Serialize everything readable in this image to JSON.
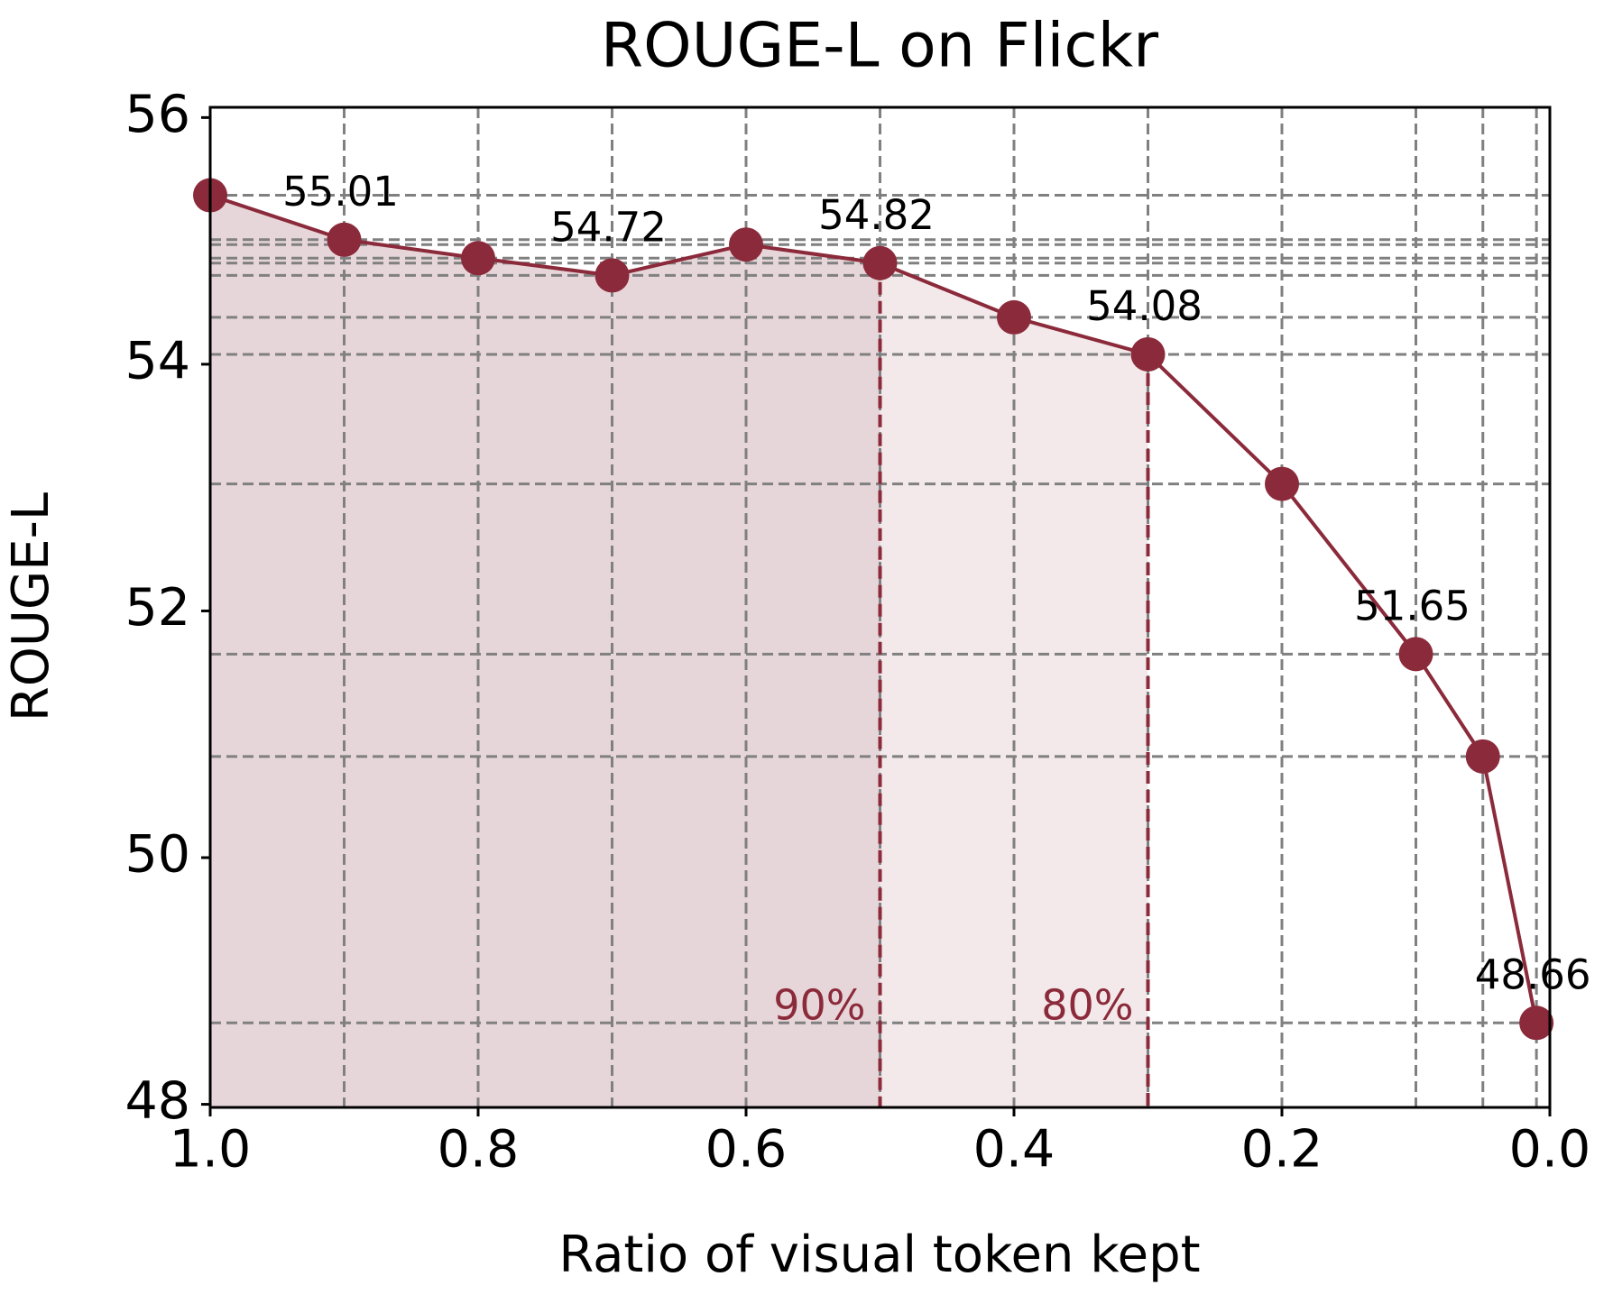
{
  "chart_data": {
    "type": "line",
    "title": "ROUGE-L on Flickr",
    "x_label": "Ratio of visual token kept",
    "y_label": "ROUGE-L",
    "x": [
      1.0,
      0.9,
      0.8,
      0.7,
      0.6,
      0.5,
      0.4,
      0.3,
      0.2,
      0.1,
      0.05,
      0.01
    ],
    "series": [
      {
        "color": "#8b2a3a",
        "values": [
          55.37,
          55.01,
          54.86,
          54.72,
          54.97,
          54.82,
          54.38,
          54.08,
          53.03,
          51.65,
          50.82,
          48.66
        ],
        "value_labels": [
          null,
          "55.01",
          null,
          "54.72",
          null,
          "54.82",
          null,
          "54.08",
          null,
          "51.65",
          null,
          "48.66"
        ]
      }
    ],
    "xlim": [
      1.0,
      0.0
    ],
    "ylim": [
      47.975,
      56.083
    ],
    "xticks": [
      {
        "value": 1,
        "label": "1.0"
      },
      0.8,
      0.6,
      0.4,
      0.2,
      {
        "value": 0,
        "label": "0.0"
      }
    ],
    "yticks": [
      48,
      50,
      52,
      54,
      56
    ],
    "grid": true,
    "annotations": [
      {
        "text": "90%",
        "x": 0.5,
        "fill": "#e7d6d9"
      },
      {
        "text": "80%",
        "x": 0.3,
        "fill": "#f3e8ea"
      }
    ]
  }
}
